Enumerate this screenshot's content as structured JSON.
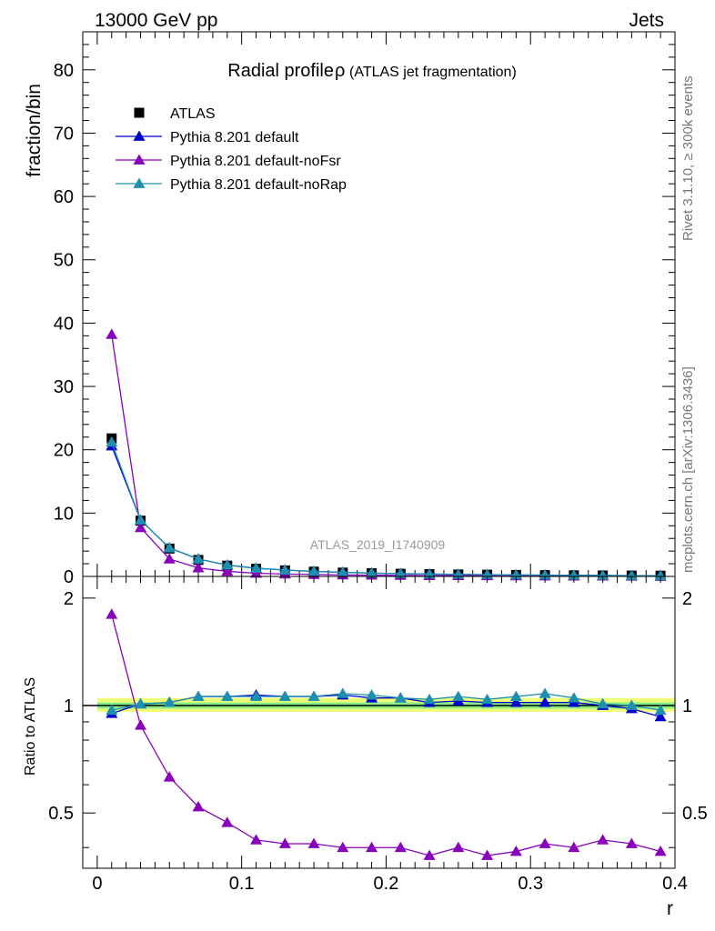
{
  "header": {
    "left": "13000 GeV pp",
    "right": "Jets"
  },
  "side_text": {
    "rivet": "Rivet 3.1.10, ≥ 300k events",
    "mcplots": "mcplots.cern.ch [arXiv:1306.3436]"
  },
  "chart_data": [
    {
      "type": "scatter",
      "title": "Radial profile",
      "title_symbol": "ρ",
      "title_note": "(ATLAS jet fragmentation)",
      "ylabel": "fraction/bin",
      "watermark": "ATLAS_2019_I1740909",
      "xlim": [
        -0.01,
        0.4
      ],
      "ylim": [
        0,
        86
      ],
      "x_ticks": [
        "0",
        "0.1",
        "0.2",
        "0.3",
        "0.4"
      ],
      "y_ticks": [
        "0",
        "10",
        "20",
        "30",
        "40",
        "50",
        "60",
        "70",
        "80"
      ],
      "legend_position": "top-left",
      "x": [
        0.01,
        0.03,
        0.05,
        0.07,
        0.09,
        0.11,
        0.13,
        0.15,
        0.17,
        0.19,
        0.21,
        0.23,
        0.25,
        0.27,
        0.29,
        0.31,
        0.33,
        0.35,
        0.37,
        0.39
      ],
      "series": [
        {
          "name": "ATLAS",
          "color": "#000000",
          "marker": "square",
          "values": [
            21.8,
            8.8,
            4.4,
            2.6,
            1.7,
            1.2,
            0.95,
            0.75,
            0.6,
            0.5,
            0.42,
            0.36,
            0.31,
            0.27,
            0.23,
            0.2,
            0.17,
            0.15,
            0.13,
            0.11
          ]
        },
        {
          "name": "Pythia 8.201 default",
          "color": "#0000cc",
          "marker": "triangle",
          "values": [
            20.6,
            8.9,
            4.5,
            2.75,
            1.8,
            1.28,
            1.0,
            0.79,
            0.64,
            0.52,
            0.44,
            0.37,
            0.32,
            0.27,
            0.23,
            0.2,
            0.17,
            0.15,
            0.13,
            0.1
          ]
        },
        {
          "name": "Pythia 8.201 default-noFsr",
          "color": "#8800bb",
          "marker": "triangle",
          "values": [
            38.2,
            7.7,
            2.75,
            1.35,
            0.8,
            0.5,
            0.38,
            0.3,
            0.23,
            0.19,
            0.16,
            0.13,
            0.12,
            0.1,
            0.09,
            0.08,
            0.07,
            0.06,
            0.05,
            0.04
          ]
        },
        {
          "name": "Pythia 8.201 default-noRap",
          "color": "#1f8fb0",
          "marker": "triangle",
          "values": [
            21.2,
            8.9,
            4.5,
            2.75,
            1.8,
            1.3,
            1.0,
            0.8,
            0.65,
            0.53,
            0.44,
            0.37,
            0.32,
            0.28,
            0.24,
            0.21,
            0.18,
            0.15,
            0.13,
            0.11
          ]
        }
      ]
    },
    {
      "type": "scatter",
      "ylabel": "Ratio to ATLAS",
      "xlabel": "r",
      "xlim": [
        -0.01,
        0.4
      ],
      "ylim": [
        0.35,
        2.3
      ],
      "x_ticks": [
        "0",
        "0.1",
        "0.2",
        "0.3",
        "0.4"
      ],
      "y_ticks": [
        "0.5",
        "1",
        "2"
      ],
      "band_inner_color": "#88ee88",
      "band_outer_color": "#eeff77",
      "band_inner": [
        0.98,
        1.02
      ],
      "band_outer": [
        0.96,
        1.05
      ],
      "x": [
        0.01,
        0.03,
        0.05,
        0.07,
        0.09,
        0.11,
        0.13,
        0.15,
        0.17,
        0.19,
        0.21,
        0.23,
        0.25,
        0.27,
        0.29,
        0.31,
        0.33,
        0.35,
        0.37,
        0.39
      ],
      "series": [
        {
          "name": "Pythia 8.201 default",
          "color": "#0000cc",
          "values": [
            0.95,
            1.01,
            1.02,
            1.06,
            1.06,
            1.07,
            1.06,
            1.06,
            1.07,
            1.05,
            1.05,
            1.02,
            1.03,
            1.02,
            1.02,
            1.02,
            1.02,
            1.0,
            0.98,
            0.93
          ]
        },
        {
          "name": "Pythia 8.201 default-noFsr",
          "color": "#8800bb",
          "values": [
            1.8,
            0.88,
            0.63,
            0.52,
            0.47,
            0.42,
            0.41,
            0.41,
            0.4,
            0.4,
            0.4,
            0.38,
            0.4,
            0.38,
            0.39,
            0.41,
            0.4,
            0.42,
            0.41,
            0.39
          ]
        },
        {
          "name": "Pythia 8.201 default-noRap",
          "color": "#1f8fb0",
          "values": [
            0.97,
            1.01,
            1.02,
            1.06,
            1.06,
            1.06,
            1.06,
            1.06,
            1.08,
            1.07,
            1.05,
            1.04,
            1.06,
            1.04,
            1.06,
            1.08,
            1.05,
            1.01,
            1.0,
            0.97
          ]
        }
      ]
    }
  ]
}
